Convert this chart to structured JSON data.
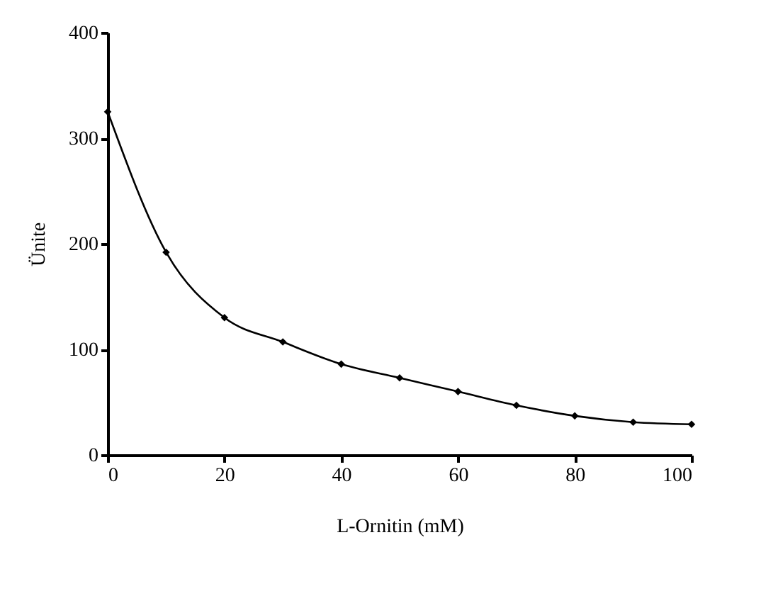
{
  "chart_data": {
    "type": "line",
    "xlabel": "L-Ornitin (mM)",
    "ylabel": "Ünite",
    "x": [
      0,
      10,
      20,
      30,
      40,
      50,
      60,
      70,
      80,
      90,
      100
    ],
    "series": [
      {
        "color": "#000000",
        "values": [
          325,
          192,
          130,
          107,
          86,
          73,
          60,
          47,
          37,
          31,
          29
        ]
      }
    ],
    "xlim": [
      0,
      100
    ],
    "xticks": [
      0,
      20,
      40,
      60,
      80,
      100
    ],
    "ylim": [
      0,
      400
    ],
    "yticks": [
      0,
      100,
      200,
      300,
      400
    ],
    "grid": false,
    "marker": "diamond",
    "line_style": "solid"
  }
}
